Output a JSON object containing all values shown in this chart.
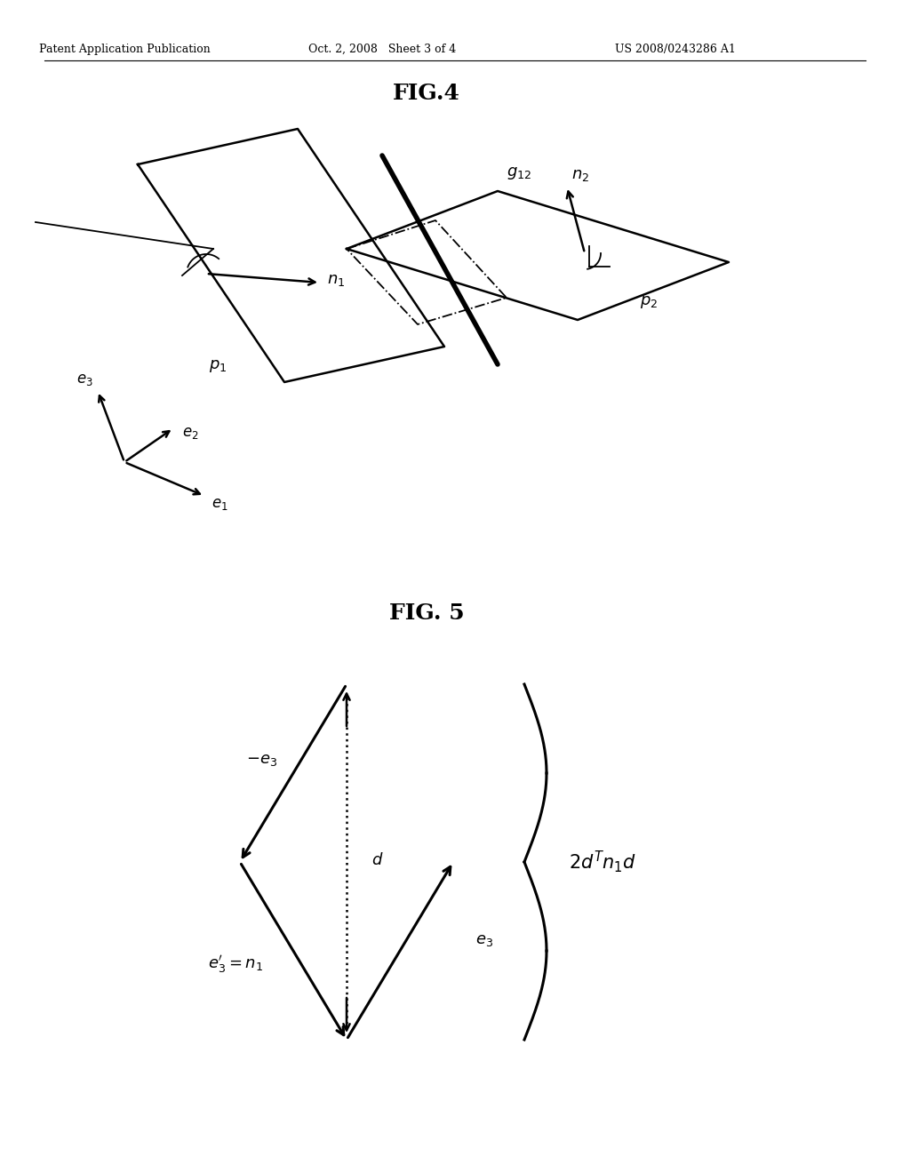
{
  "header_left": "Patent Application Publication",
  "header_mid": "Oct. 2, 2008   Sheet 3 of 4",
  "header_right": "US 2008/0243286 A1",
  "fig4_title": "FIG.4",
  "fig5_title": "FIG. 5",
  "bg_color": "#ffffff",
  "line_color": "#000000"
}
